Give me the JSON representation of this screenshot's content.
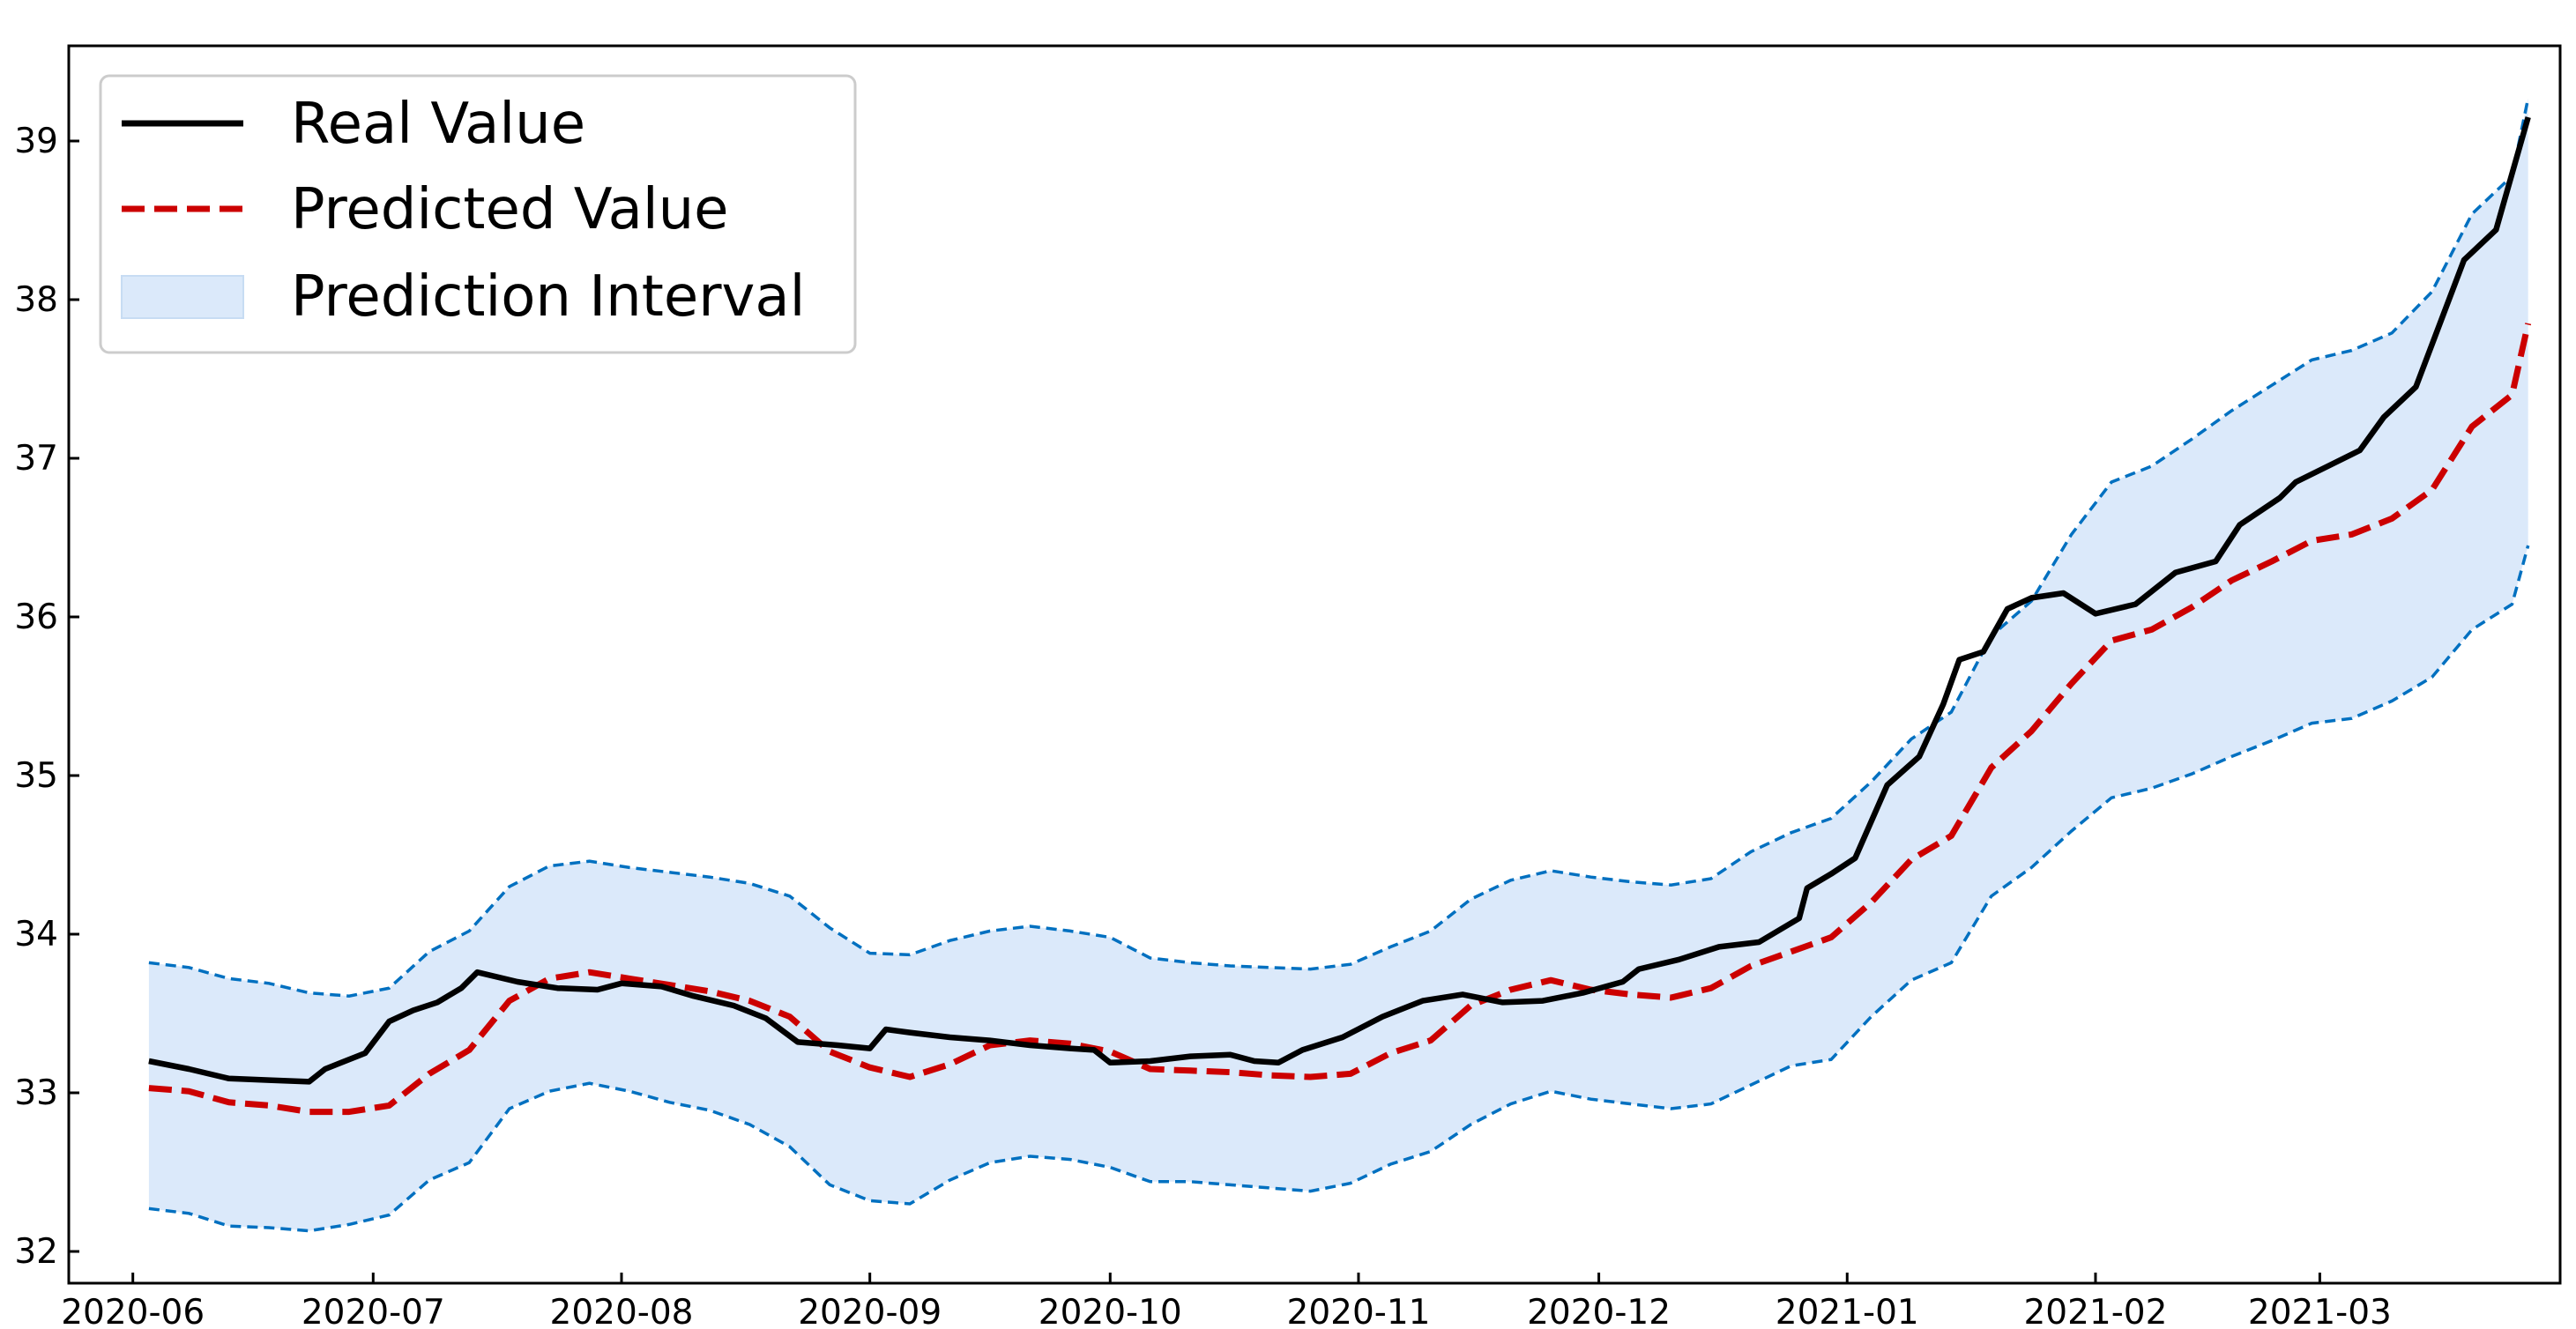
{
  "chart_data": {
    "type": "line",
    "title": "",
    "xlabel": "",
    "ylabel": "",
    "grid": false,
    "legend_position": "top-left",
    "x_tick_labels": [
      "2020-06",
      "2020-07",
      "2020-08",
      "2020-09",
      "2020-10",
      "2020-11",
      "2020-12",
      "2021-01",
      "2021-02",
      "2021-03"
    ],
    "y_tick_labels": [
      "32",
      "33",
      "34",
      "35",
      "36",
      "37",
      "38",
      "39"
    ],
    "xlim": [
      "2020-05-24",
      "2021-03-31"
    ],
    "ylim": [
      31.8,
      39.6
    ],
    "legend": [
      {
        "label": "Real Value",
        "style": "solid",
        "color": "#000000"
      },
      {
        "label": "Predicted Value",
        "style": "dashed",
        "color": "#cc0000"
      },
      {
        "label": "Prediction Interval",
        "style": "fill",
        "color": "#dbe9fa"
      }
    ],
    "series": [
      {
        "name": "Real Value",
        "color": "#000000",
        "points": [
          [
            "2020-06-03",
            33.2
          ],
          [
            "2020-06-08",
            33.15
          ],
          [
            "2020-06-13",
            33.09
          ],
          [
            "2020-06-18",
            33.08
          ],
          [
            "2020-06-23",
            33.07
          ],
          [
            "2020-06-25",
            33.15
          ],
          [
            "2020-06-30",
            33.25
          ],
          [
            "2020-07-03",
            33.45
          ],
          [
            "2020-07-06",
            33.52
          ],
          [
            "2020-07-09",
            33.57
          ],
          [
            "2020-07-12",
            33.66
          ],
          [
            "2020-07-14",
            33.76
          ],
          [
            "2020-07-19",
            33.7
          ],
          [
            "2020-07-24",
            33.66
          ],
          [
            "2020-07-29",
            33.65
          ],
          [
            "2020-08-01",
            33.69
          ],
          [
            "2020-08-06",
            33.67
          ],
          [
            "2020-08-10",
            33.61
          ],
          [
            "2020-08-15",
            33.55
          ],
          [
            "2020-08-19",
            33.47
          ],
          [
            "2020-08-23",
            33.32
          ],
          [
            "2020-08-28",
            33.3
          ],
          [
            "2020-09-01",
            33.28
          ],
          [
            "2020-09-03",
            33.4
          ],
          [
            "2020-09-06",
            33.38
          ],
          [
            "2020-09-11",
            33.35
          ],
          [
            "2020-09-16",
            33.33
          ],
          [
            "2020-09-21",
            33.3
          ],
          [
            "2020-09-26",
            33.28
          ],
          [
            "2020-09-29",
            33.27
          ],
          [
            "2020-10-01",
            33.19
          ],
          [
            "2020-10-06",
            33.2
          ],
          [
            "2020-10-11",
            33.23
          ],
          [
            "2020-10-16",
            33.24
          ],
          [
            "2020-10-19",
            33.2
          ],
          [
            "2020-10-22",
            33.19
          ],
          [
            "2020-10-25",
            33.27
          ],
          [
            "2020-10-30",
            33.35
          ],
          [
            "2020-11-04",
            33.48
          ],
          [
            "2020-11-09",
            33.58
          ],
          [
            "2020-11-14",
            33.62
          ],
          [
            "2020-11-19",
            33.57
          ],
          [
            "2020-11-24",
            33.58
          ],
          [
            "2020-11-29",
            33.63
          ],
          [
            "2020-12-04",
            33.7
          ],
          [
            "2020-12-06",
            33.78
          ],
          [
            "2020-12-11",
            33.84
          ],
          [
            "2020-12-16",
            33.92
          ],
          [
            "2020-12-21",
            33.95
          ],
          [
            "2020-12-26",
            34.1
          ],
          [
            "2020-12-27",
            34.29
          ],
          [
            "2020-12-30",
            34.38
          ],
          [
            "2021-01-02",
            34.48
          ],
          [
            "2021-01-06",
            34.94
          ],
          [
            "2021-01-10",
            35.12
          ],
          [
            "2021-01-13",
            35.45
          ],
          [
            "2021-01-15",
            35.73
          ],
          [
            "2021-01-18",
            35.78
          ],
          [
            "2021-01-21",
            36.05
          ],
          [
            "2021-01-24",
            36.12
          ],
          [
            "2021-01-28",
            36.15
          ],
          [
            "2021-02-01",
            36.02
          ],
          [
            "2021-02-06",
            36.08
          ],
          [
            "2021-02-11",
            36.28
          ],
          [
            "2021-02-16",
            36.35
          ],
          [
            "2021-02-19",
            36.58
          ],
          [
            "2021-02-24",
            36.75
          ],
          [
            "2021-02-26",
            36.85
          ],
          [
            "2021-03-02",
            36.95
          ],
          [
            "2021-03-06",
            37.05
          ],
          [
            "2021-03-09",
            37.26
          ],
          [
            "2021-03-13",
            37.45
          ],
          [
            "2021-03-19",
            38.25
          ],
          [
            "2021-03-23",
            38.44
          ],
          [
            "2021-03-27",
            39.15
          ]
        ]
      },
      {
        "name": "Predicted Value",
        "color": "#cc0000",
        "points": [
          [
            "2020-06-03",
            33.03
          ],
          [
            "2020-06-08",
            33.01
          ],
          [
            "2020-06-13",
            32.94
          ],
          [
            "2020-06-18",
            32.92
          ],
          [
            "2020-06-23",
            32.88
          ],
          [
            "2020-06-28",
            32.88
          ],
          [
            "2020-07-03",
            32.92
          ],
          [
            "2020-07-08",
            33.12
          ],
          [
            "2020-07-13",
            33.27
          ],
          [
            "2020-07-18",
            33.58
          ],
          [
            "2020-07-23",
            33.72
          ],
          [
            "2020-07-28",
            33.76
          ],
          [
            "2020-08-02",
            33.72
          ],
          [
            "2020-08-07",
            33.68
          ],
          [
            "2020-08-12",
            33.64
          ],
          [
            "2020-08-17",
            33.58
          ],
          [
            "2020-08-22",
            33.48
          ],
          [
            "2020-08-27",
            33.26
          ],
          [
            "2020-09-01",
            33.16
          ],
          [
            "2020-09-06",
            33.1
          ],
          [
            "2020-09-11",
            33.18
          ],
          [
            "2020-09-16",
            33.3
          ],
          [
            "2020-09-21",
            33.33
          ],
          [
            "2020-09-26",
            33.31
          ],
          [
            "2020-10-01",
            33.26
          ],
          [
            "2020-10-06",
            33.15
          ],
          [
            "2020-10-11",
            33.14
          ],
          [
            "2020-10-16",
            33.13
          ],
          [
            "2020-10-21",
            33.11
          ],
          [
            "2020-10-26",
            33.1
          ],
          [
            "2020-10-31",
            33.12
          ],
          [
            "2020-11-05",
            33.25
          ],
          [
            "2020-11-10",
            33.33
          ],
          [
            "2020-11-15",
            33.55
          ],
          [
            "2020-11-20",
            33.65
          ],
          [
            "2020-11-25",
            33.71
          ],
          [
            "2020-11-30",
            33.65
          ],
          [
            "2020-12-05",
            33.62
          ],
          [
            "2020-12-10",
            33.6
          ],
          [
            "2020-12-15",
            33.66
          ],
          [
            "2020-12-20",
            33.8
          ],
          [
            "2020-12-25",
            33.89
          ],
          [
            "2020-12-30",
            33.98
          ],
          [
            "2021-01-04",
            34.2
          ],
          [
            "2021-01-09",
            34.47
          ],
          [
            "2021-01-14",
            34.62
          ],
          [
            "2021-01-19",
            35.05
          ],
          [
            "2021-01-24",
            35.28
          ],
          [
            "2021-01-29",
            35.58
          ],
          [
            "2021-02-03",
            35.85
          ],
          [
            "2021-02-08",
            35.92
          ],
          [
            "2021-02-13",
            36.06
          ],
          [
            "2021-02-18",
            36.23
          ],
          [
            "2021-02-23",
            36.35
          ],
          [
            "2021-02-28",
            36.48
          ],
          [
            "2021-03-05",
            36.52
          ],
          [
            "2021-03-10",
            36.62
          ],
          [
            "2021-03-15",
            36.8
          ],
          [
            "2021-03-20",
            37.2
          ],
          [
            "2021-03-25",
            37.4
          ],
          [
            "2021-03-27",
            37.85
          ]
        ]
      },
      {
        "name": "Prediction Interval",
        "type": "band",
        "color": "#dbe9fa",
        "edge_color": "#0070c0",
        "points": [
          [
            "2020-06-03",
            32.27,
            33.82
          ],
          [
            "2020-06-08",
            32.24,
            33.79
          ],
          [
            "2020-06-13",
            32.16,
            33.72
          ],
          [
            "2020-06-18",
            32.15,
            33.69
          ],
          [
            "2020-06-23",
            32.13,
            33.63
          ],
          [
            "2020-06-28",
            32.17,
            33.61
          ],
          [
            "2020-07-03",
            32.23,
            33.66
          ],
          [
            "2020-07-08",
            32.45,
            33.89
          ],
          [
            "2020-07-13",
            32.56,
            34.02
          ],
          [
            "2020-07-18",
            32.9,
            34.3
          ],
          [
            "2020-07-23",
            33.01,
            34.43
          ],
          [
            "2020-07-28",
            33.06,
            34.46
          ],
          [
            "2020-08-02",
            33.01,
            34.42
          ],
          [
            "2020-08-07",
            32.94,
            34.39
          ],
          [
            "2020-08-12",
            32.89,
            34.36
          ],
          [
            "2020-08-17",
            32.8,
            34.32
          ],
          [
            "2020-08-22",
            32.66,
            34.24
          ],
          [
            "2020-08-27",
            32.42,
            34.04
          ],
          [
            "2020-09-01",
            32.32,
            33.88
          ],
          [
            "2020-09-06",
            32.3,
            33.87
          ],
          [
            "2020-09-11",
            32.45,
            33.96
          ],
          [
            "2020-09-16",
            32.56,
            34.02
          ],
          [
            "2020-09-21",
            32.6,
            34.05
          ],
          [
            "2020-09-26",
            32.58,
            34.02
          ],
          [
            "2020-10-01",
            32.53,
            33.98
          ],
          [
            "2020-10-06",
            32.44,
            33.85
          ],
          [
            "2020-10-11",
            32.44,
            33.82
          ],
          [
            "2020-10-16",
            32.42,
            33.8
          ],
          [
            "2020-10-21",
            32.4,
            33.79
          ],
          [
            "2020-10-26",
            32.38,
            33.78
          ],
          [
            "2020-10-31",
            32.43,
            33.81
          ],
          [
            "2020-11-05",
            32.55,
            33.92
          ],
          [
            "2020-11-10",
            32.63,
            34.02
          ],
          [
            "2020-11-15",
            32.8,
            34.22
          ],
          [
            "2020-11-20",
            32.93,
            34.34
          ],
          [
            "2020-11-25",
            33.01,
            34.4
          ],
          [
            "2020-11-30",
            32.96,
            34.36
          ],
          [
            "2020-12-05",
            32.93,
            34.33
          ],
          [
            "2020-12-10",
            32.9,
            34.31
          ],
          [
            "2020-12-15",
            32.93,
            34.35
          ],
          [
            "2020-12-20",
            33.05,
            34.52
          ],
          [
            "2020-12-25",
            33.17,
            34.64
          ],
          [
            "2020-12-30",
            33.21,
            34.73
          ],
          [
            "2021-01-04",
            33.48,
            34.96
          ],
          [
            "2021-01-09",
            33.71,
            35.23
          ],
          [
            "2021-01-14",
            33.82,
            35.4
          ],
          [
            "2021-01-19",
            34.24,
            35.88
          ],
          [
            "2021-01-24",
            34.42,
            36.1
          ],
          [
            "2021-01-29",
            34.65,
            36.52
          ],
          [
            "2021-02-03",
            34.86,
            36.85
          ],
          [
            "2021-02-08",
            34.92,
            36.95
          ],
          [
            "2021-02-13",
            35.01,
            37.12
          ],
          [
            "2021-02-18",
            35.12,
            37.3
          ],
          [
            "2021-02-23",
            35.22,
            37.46
          ],
          [
            "2021-02-28",
            35.33,
            37.62
          ],
          [
            "2021-03-05",
            35.36,
            37.68
          ],
          [
            "2021-03-10",
            35.47,
            37.79
          ],
          [
            "2021-03-15",
            35.62,
            38.05
          ],
          [
            "2021-03-20",
            35.92,
            38.54
          ],
          [
            "2021-03-25",
            36.08,
            38.78
          ],
          [
            "2021-03-27",
            36.45,
            39.27
          ]
        ]
      }
    ]
  }
}
